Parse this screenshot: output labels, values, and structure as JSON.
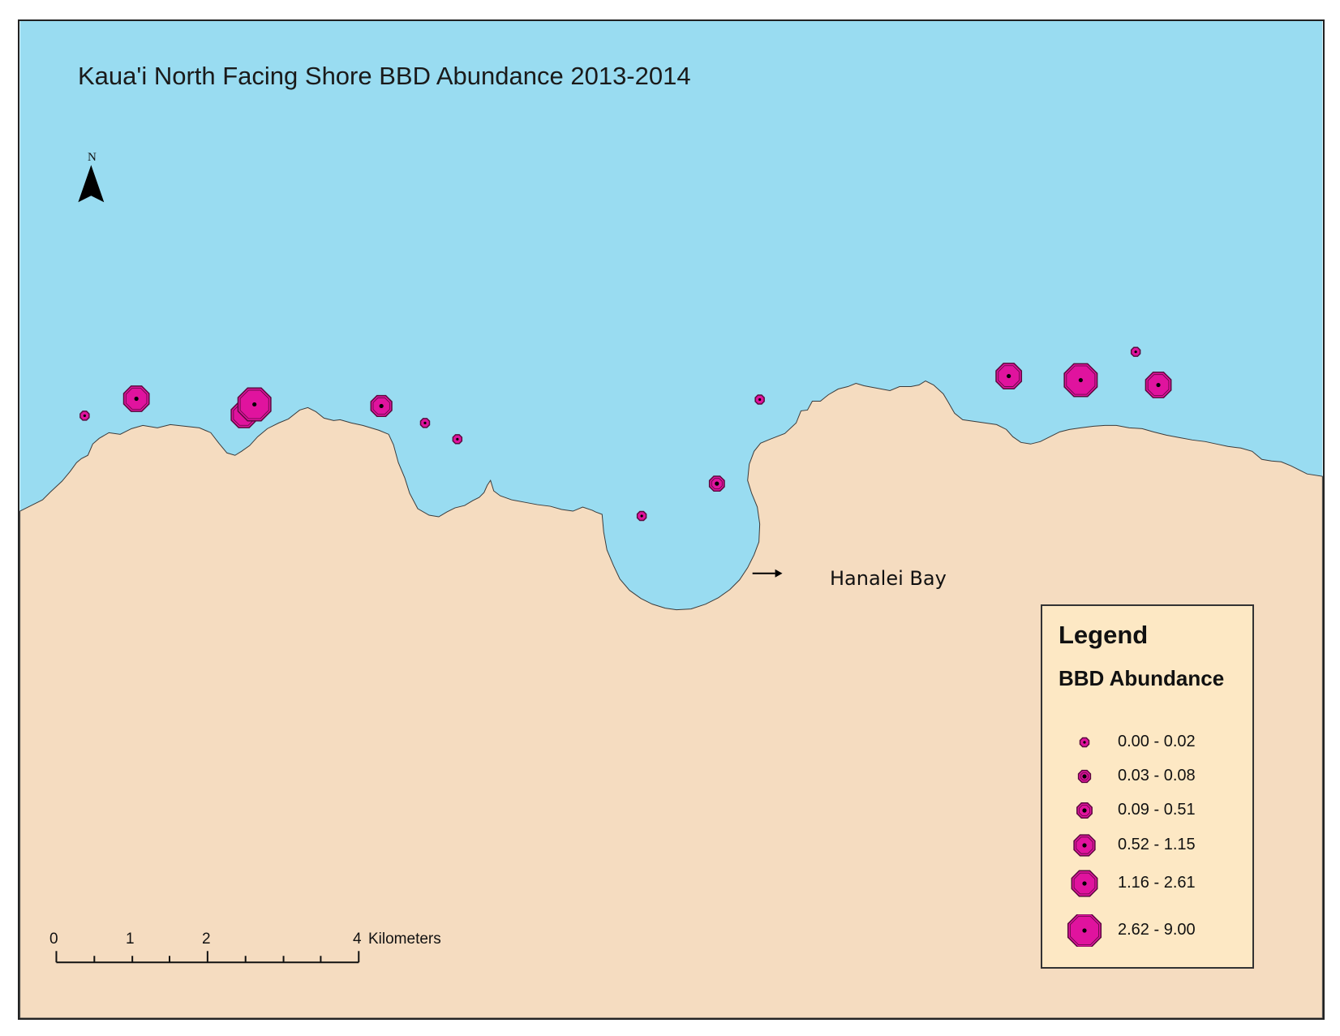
{
  "map": {
    "title": "Kaua'i North Facing Shore BBD Abundance 2013-2014",
    "north_label": "N",
    "annotation": "Hanalei Bay",
    "colors": {
      "water": "#99dcf1",
      "land": "#f5dcc0",
      "marker_fill": "#e0139e",
      "marker_stroke": "#5a0a3e",
      "legend_bg": "#fde8c4"
    }
  },
  "legend": {
    "title": "Legend",
    "subtitle": "BBD Abundance",
    "classes": [
      {
        "label": "0.00 - 0.02",
        "min": 0.0,
        "max": 0.02
      },
      {
        "label": "0.03 - 0.08",
        "min": 0.03,
        "max": 0.08
      },
      {
        "label": "0.09 - 0.51",
        "min": 0.09,
        "max": 0.51
      },
      {
        "label": "0.52 - 1.15",
        "min": 0.52,
        "max": 1.15
      },
      {
        "label": "1.16 - 2.61",
        "min": 1.16,
        "max": 2.61
      },
      {
        "label": "2.62 - 9.00",
        "min": 2.62,
        "max": 9.0
      }
    ]
  },
  "scale_bar": {
    "ticks": [
      "0",
      "1",
      "2",
      "4"
    ],
    "unit": "Kilometers"
  },
  "sites": [
    {
      "class": 0
    },
    {
      "class": 4
    },
    {
      "class": 4
    },
    {
      "class": 5
    },
    {
      "class": 3
    },
    {
      "class": 0
    },
    {
      "class": 0
    },
    {
      "class": 0
    },
    {
      "class": 2
    },
    {
      "class": 0
    },
    {
      "class": 4
    },
    {
      "class": 5
    },
    {
      "class": 0
    },
    {
      "class": 4
    }
  ]
}
